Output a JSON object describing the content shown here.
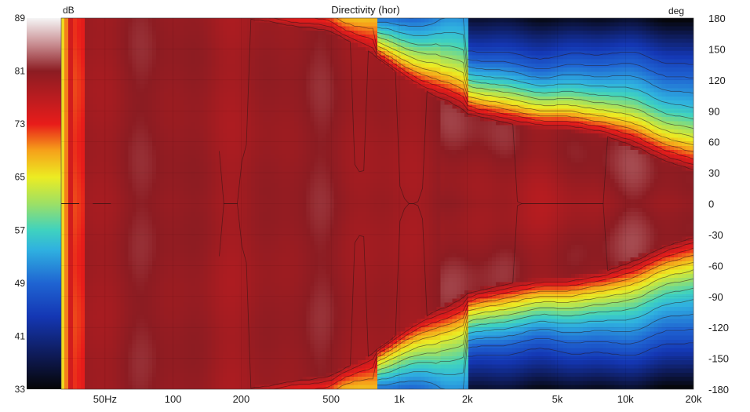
{
  "chart_data": {
    "type": "heatmap",
    "title": "Directivity (hor)",
    "colorbar": {
      "unit": "dB",
      "ticks": [
        89,
        81,
        73,
        65,
        57,
        49,
        41,
        33
      ],
      "range": [
        33,
        89
      ],
      "stops": [
        {
          "v": 33,
          "c": "#050505"
        },
        {
          "v": 38,
          "c": "#0e1a55"
        },
        {
          "v": 44,
          "c": "#1437b4"
        },
        {
          "v": 49,
          "c": "#1f64d2"
        },
        {
          "v": 54,
          "c": "#2fb0e0"
        },
        {
          "v": 57,
          "c": "#3fd2bf"
        },
        {
          "v": 61,
          "c": "#9de065"
        },
        {
          "v": 65,
          "c": "#ecec22"
        },
        {
          "v": 69,
          "c": "#f6a11a"
        },
        {
          "v": 73,
          "c": "#e81c1a"
        },
        {
          "v": 77,
          "c": "#ba1c20"
        },
        {
          "v": 81,
          "c": "#8c1c22"
        },
        {
          "v": 85,
          "c": "#c88c90"
        },
        {
          "v": 89,
          "c": "#f5f5f5"
        }
      ]
    },
    "x_axis": {
      "scale": "log",
      "range": [
        32,
        20000
      ],
      "ticks": [
        {
          "label": "50Hz",
          "value": 50
        },
        {
          "label": "100",
          "value": 100
        },
        {
          "label": "200",
          "value": 200
        },
        {
          "label": "500",
          "value": 500
        },
        {
          "label": "1k",
          "value": 1000
        },
        {
          "label": "2k",
          "value": 2000
        },
        {
          "label": "5k",
          "value": 5000
        },
        {
          "label": "10k",
          "value": 10000
        },
        {
          "label": "20k",
          "value": 20000
        }
      ]
    },
    "y_axis": {
      "unit": "deg",
      "range": [
        -180,
        180
      ],
      "ticks": [
        180,
        150,
        120,
        90,
        60,
        30,
        0,
        -30,
        -60,
        -90,
        -120,
        -150,
        -180
      ]
    },
    "contour_level_db": [
      79,
      76,
      73,
      70,
      67,
      64,
      61,
      58,
      55,
      52,
      49,
      46
    ],
    "beamwidth_profile": {
      "description_units": "frequency Hz -> half-angle deg where level falls toward off-axis edge",
      "frequency_hz": [
        32,
        40,
        50,
        100,
        200,
        500,
        700,
        1000,
        1500,
        2000,
        3000,
        5000,
        8000,
        10000,
        15000,
        20000
      ],
      "falloff_start_deg": [
        180,
        180,
        180,
        180,
        180,
        165,
        150,
        125,
        100,
        85,
        75,
        72,
        65,
        55,
        40,
        30
      ]
    },
    "grid": true,
    "legend": "left colorbar"
  }
}
